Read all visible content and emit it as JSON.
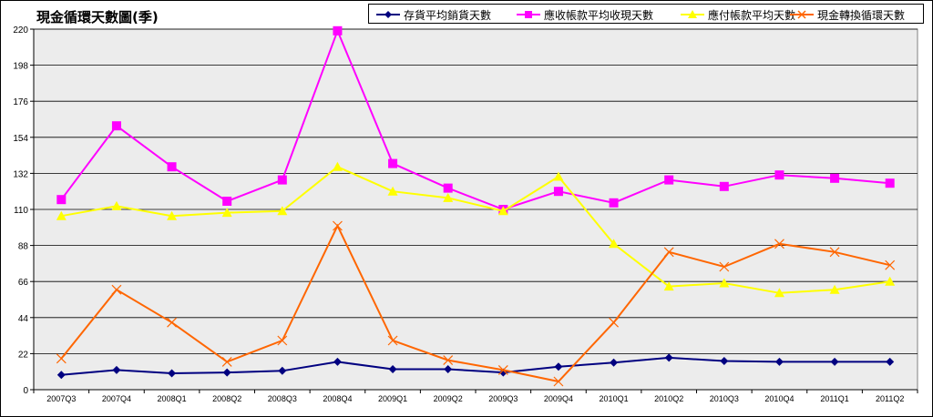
{
  "chart_data": {
    "type": "line",
    "title": "現金循環天數圖(季)",
    "categories": [
      "2007Q3",
      "2007Q4",
      "2008Q1",
      "2008Q2",
      "2008Q3",
      "2008Q4",
      "2009Q1",
      "2009Q2",
      "2009Q3",
      "2009Q4",
      "2010Q1",
      "2010Q2",
      "2010Q3",
      "2010Q4",
      "2011Q1",
      "2011Q2"
    ],
    "ylim": [
      0,
      220
    ],
    "yticks": [
      0,
      22,
      44,
      66,
      88,
      110,
      132,
      154,
      176,
      198,
      220
    ],
    "grid": true,
    "legend_position": "top-right",
    "series": [
      {
        "name": "存貨平均銷貨天數",
        "color": "#000080",
        "marker": "diamond",
        "values": [
          9,
          12,
          10,
          10.5,
          11.5,
          17,
          12.5,
          12.5,
          10.5,
          14,
          16.5,
          19.5,
          17.5,
          17,
          17,
          17
        ]
      },
      {
        "name": "應收帳款平均收現天數",
        "color": "#ff00ff",
        "marker": "square",
        "values": [
          116,
          161,
          136,
          115,
          128,
          219,
          138,
          123,
          110,
          121,
          114,
          128,
          124,
          131,
          129,
          126
        ]
      },
      {
        "name": "應付帳款平均天數",
        "color": "#ffff00",
        "marker": "triangle",
        "values": [
          106,
          112,
          106,
          108,
          109,
          136,
          121,
          117,
          109,
          130,
          89,
          63,
          65,
          59,
          61,
          66
        ]
      },
      {
        "name": "現金轉換循環天數",
        "color": "#ff6600",
        "marker": "x",
        "values": [
          19,
          61,
          41,
          17,
          30,
          100,
          30,
          18,
          12,
          5,
          41,
          84,
          75,
          89,
          84,
          76
        ]
      }
    ]
  }
}
